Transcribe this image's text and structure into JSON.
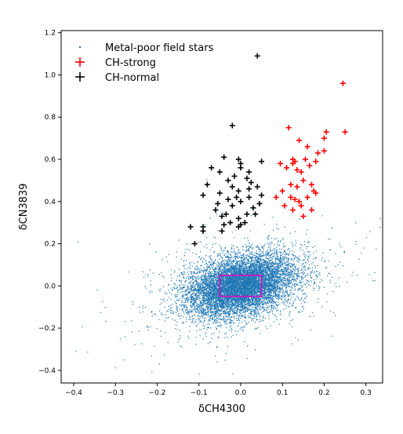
{
  "chart_data": {
    "type": "scatter",
    "xlabel": "δCH4300",
    "ylabel": "δCN3839",
    "xlim": [
      -0.43,
      0.34
    ],
    "ylim": [
      -0.46,
      1.21
    ],
    "x_ticks": [
      -0.4,
      -0.3,
      -0.2,
      -0.1,
      0.0,
      0.1,
      0.2,
      0.3
    ],
    "x_tick_labels": [
      "−0.4",
      "−0.3",
      "−0.2",
      "−0.1",
      "0.0",
      "0.1",
      "0.2",
      "0.3"
    ],
    "y_ticks": [
      -0.4,
      -0.2,
      0.0,
      0.2,
      0.4,
      0.6,
      0.8,
      1.0,
      1.2
    ],
    "y_tick_labels": [
      "−0.4",
      "−0.2",
      "0.0",
      "0.2",
      "0.4",
      "0.6",
      "0.8",
      "1.0",
      "1.2"
    ],
    "legend_position": "top-left",
    "field_distribution": {
      "center": [
        0.0,
        0.0
      ],
      "sigma_x": 0.065,
      "sigma_y": 0.075,
      "correlation": 0.35,
      "count": 9000
    },
    "region_box": {
      "x": [
        -0.05,
        0.05
      ],
      "y": [
        -0.05,
        0.05
      ],
      "color": "#c020c0"
    },
    "series": [
      {
        "name": "Metal-poor field stars",
        "marker": "dot",
        "color": "#1f77b4"
      },
      {
        "name": "CH-strong",
        "marker": "cross",
        "color": "#ff0000",
        "points": [
          [
            0.245,
            0.96
          ],
          [
            0.25,
            0.73
          ],
          [
            0.205,
            0.73
          ],
          [
            0.2,
            0.7
          ],
          [
            0.2,
            0.64
          ],
          [
            0.185,
            0.63
          ],
          [
            0.14,
            0.69
          ],
          [
            0.16,
            0.66
          ],
          [
            0.155,
            0.6
          ],
          [
            0.115,
            0.75
          ],
          [
            0.125,
            0.6
          ],
          [
            0.125,
            0.58
          ],
          [
            0.13,
            0.59
          ],
          [
            0.095,
            0.58
          ],
          [
            0.11,
            0.56
          ],
          [
            0.135,
            0.55
          ],
          [
            0.145,
            0.54
          ],
          [
            0.165,
            0.57
          ],
          [
            0.18,
            0.59
          ],
          [
            0.12,
            0.48
          ],
          [
            0.135,
            0.47
          ],
          [
            0.15,
            0.5
          ],
          [
            0.17,
            0.48
          ],
          [
            0.085,
            0.42
          ],
          [
            0.1,
            0.45
          ],
          [
            0.12,
            0.42
          ],
          [
            0.13,
            0.41
          ],
          [
            0.14,
            0.4
          ],
          [
            0.145,
            0.38
          ],
          [
            0.16,
            0.42
          ],
          [
            0.175,
            0.45
          ],
          [
            0.18,
            0.44
          ],
          [
            0.105,
            0.38
          ],
          [
            0.125,
            0.36
          ],
          [
            0.15,
            0.33
          ],
          [
            0.17,
            0.36
          ]
        ]
      },
      {
        "name": "CH-normal",
        "marker": "cross",
        "color": "#000000",
        "points": [
          [
            0.04,
            1.09
          ],
          [
            -0.02,
            0.76
          ],
          [
            -0.04,
            0.61
          ],
          [
            -0.005,
            0.6
          ],
          [
            0.0,
            0.58
          ],
          [
            -0.07,
            0.56
          ],
          [
            -0.05,
            0.54
          ],
          [
            0.0,
            0.56
          ],
          [
            0.02,
            0.54
          ],
          [
            0.05,
            0.59
          ],
          [
            -0.015,
            0.52
          ],
          [
            0.015,
            0.51
          ],
          [
            0.025,
            0.49
          ],
          [
            -0.03,
            0.5
          ],
          [
            -0.08,
            0.48
          ],
          [
            -0.02,
            0.47
          ],
          [
            0.02,
            0.46
          ],
          [
            0.04,
            0.47
          ],
          [
            -0.005,
            0.45
          ],
          [
            -0.05,
            0.44
          ],
          [
            -0.09,
            0.43
          ],
          [
            -0.01,
            0.42
          ],
          [
            0.02,
            0.42
          ],
          [
            0.05,
            0.43
          ],
          [
            -0.03,
            0.41
          ],
          [
            0.0,
            0.4
          ],
          [
            -0.055,
            0.39
          ],
          [
            -0.02,
            0.38
          ],
          [
            0.03,
            0.37
          ],
          [
            0.045,
            0.39
          ],
          [
            -0.06,
            0.36
          ],
          [
            -0.035,
            0.34
          ],
          [
            0.015,
            0.34
          ],
          [
            0.035,
            0.34
          ],
          [
            -0.045,
            0.33
          ],
          [
            -0.005,
            0.32
          ],
          [
            -0.025,
            0.3
          ],
          [
            0.01,
            0.3
          ],
          [
            -0.12,
            0.28
          ],
          [
            -0.09,
            0.28
          ],
          [
            -0.04,
            0.29
          ],
          [
            -0.005,
            0.28
          ],
          [
            0.0,
            0.29
          ],
          [
            -0.09,
            0.26
          ],
          [
            -0.045,
            0.26
          ],
          [
            -0.11,
            0.2
          ]
        ]
      }
    ]
  }
}
